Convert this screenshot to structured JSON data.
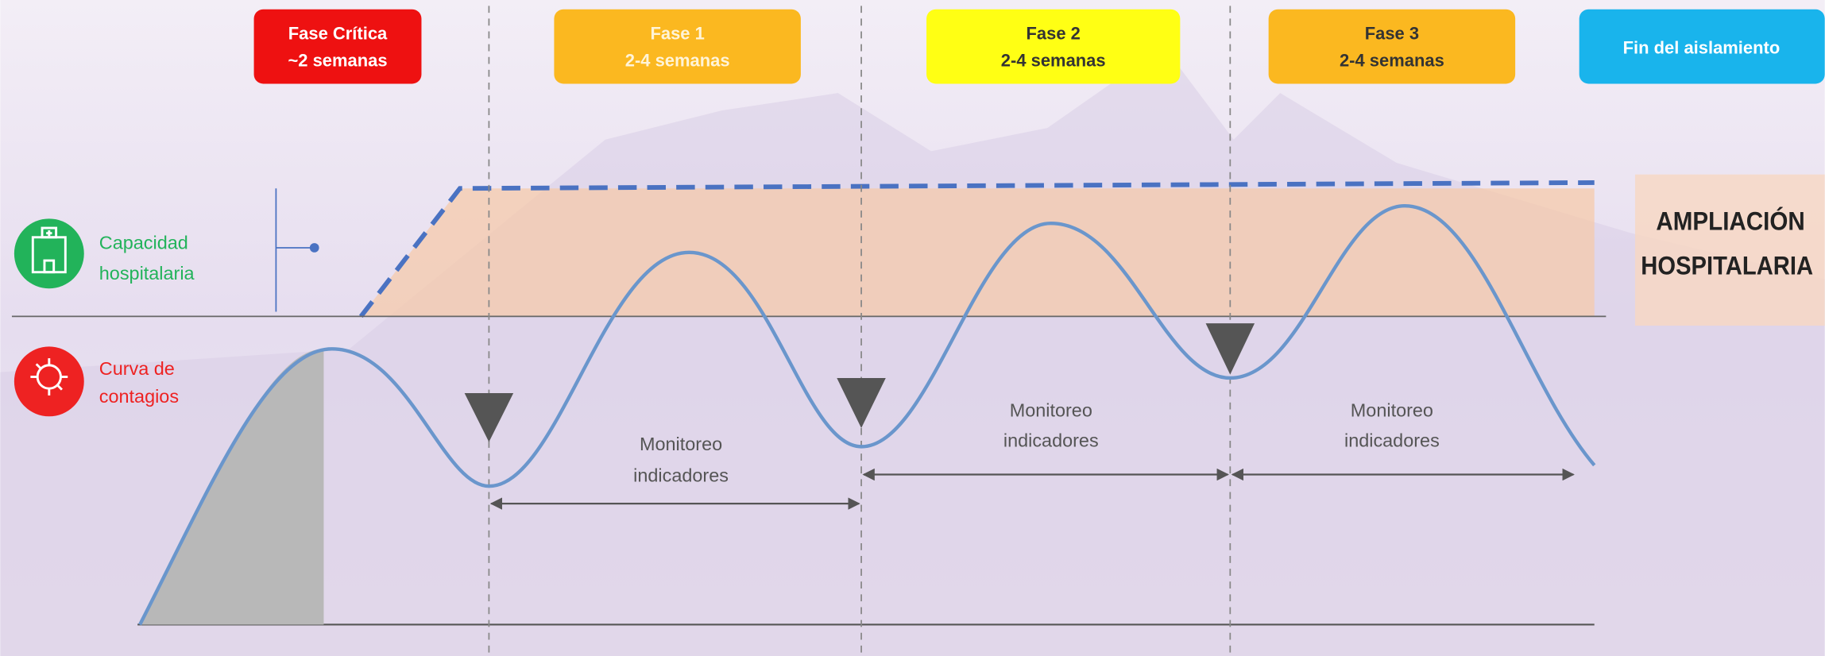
{
  "phases": [
    {
      "title": "Fase Crítica",
      "duration": "~2 semanas"
    },
    {
      "title": "Fase 1",
      "duration": "2-4 semanas"
    },
    {
      "title": "Fase 2",
      "duration": "2-4 semanas"
    },
    {
      "title": "Fase 3",
      "duration": "2-4 semanas"
    },
    {
      "title": "Fin del aislamiento"
    }
  ],
  "legend": [
    {
      "lines": [
        "Capacidad",
        "hospitalaria"
      ]
    },
    {
      "lines": [
        "Curva de",
        "contagios"
      ]
    }
  ],
  "expansion_label": [
    "AMPLIACIÓN",
    "HOSPITALARIA"
  ],
  "monitoring": [
    [
      "Monitoreo",
      "indicadores"
    ],
    [
      "Monitoreo",
      "indicadores"
    ],
    [
      "Monitoreo",
      "indicadores"
    ]
  ]
}
